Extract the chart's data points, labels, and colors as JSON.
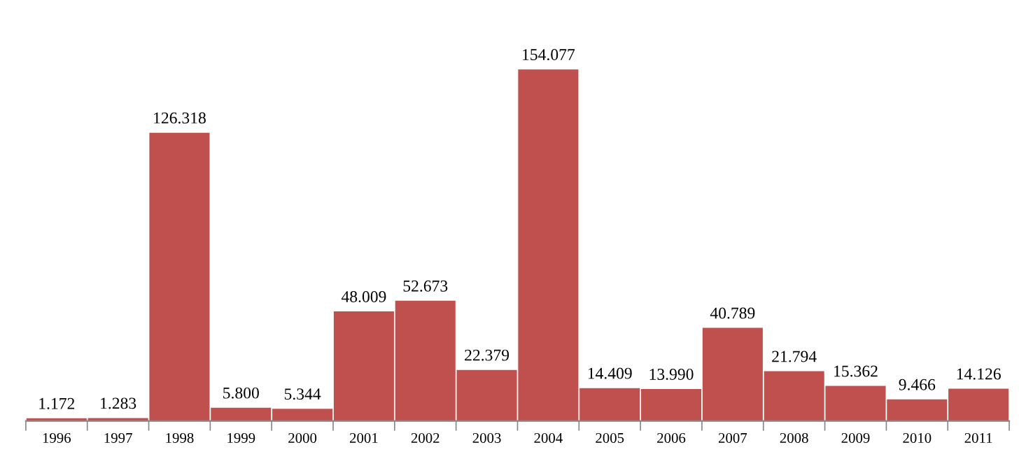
{
  "chart_data": {
    "type": "bar",
    "categories": [
      "1996",
      "1997",
      "1998",
      "1999",
      "2000",
      "2001",
      "2002",
      "2003",
      "2004",
      "2005",
      "2006",
      "2007",
      "2008",
      "2009",
      "2010",
      "2011"
    ],
    "values": [
      1.172,
      1.283,
      126.318,
      5.8,
      5.344,
      48.009,
      52.673,
      22.379,
      154.077,
      14.409,
      13.99,
      40.789,
      21.794,
      15.362,
      9.466,
      14.126
    ],
    "value_labels": [
      "1.172",
      "1.283",
      "126.318",
      "5.800",
      "5.344",
      "48.009",
      "52.673",
      "22.379",
      "154.077",
      "14.409",
      "13.990",
      "40.789",
      "21.794",
      "15.362",
      "9.466",
      "14.126"
    ],
    "color": "#c0504d",
    "grid": false,
    "legend": false
  }
}
